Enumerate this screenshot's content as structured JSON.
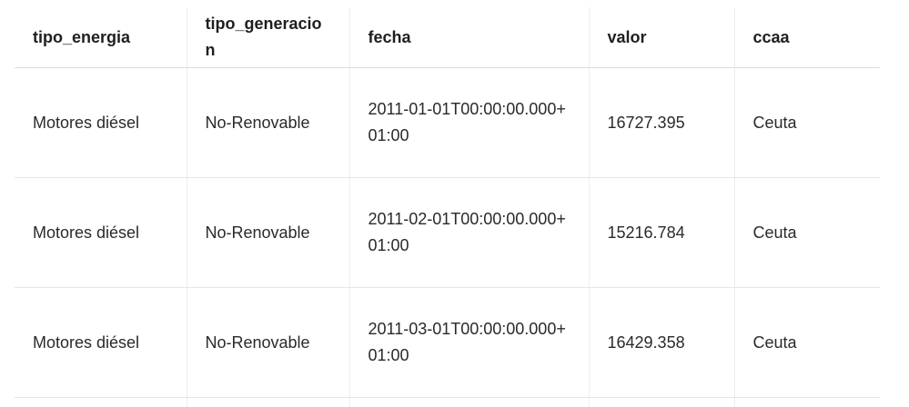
{
  "table": {
    "headers": [
      "tipo_energia",
      "tipo_generacion",
      "fecha",
      "valor",
      "ccaa"
    ],
    "rows": [
      [
        "Motores diésel",
        "No-Renovable",
        "2011-01-01T00:00:00.000+01:00",
        "16727.395",
        "Ceuta"
      ],
      [
        "Motores diésel",
        "No-Renovable",
        "2011-02-01T00:00:00.000+01:00",
        "15216.784",
        "Ceuta"
      ],
      [
        "Motores diésel",
        "No-Renovable",
        "2011-03-01T00:00:00.000+01:00",
        "16429.358",
        "Ceuta"
      ]
    ]
  }
}
